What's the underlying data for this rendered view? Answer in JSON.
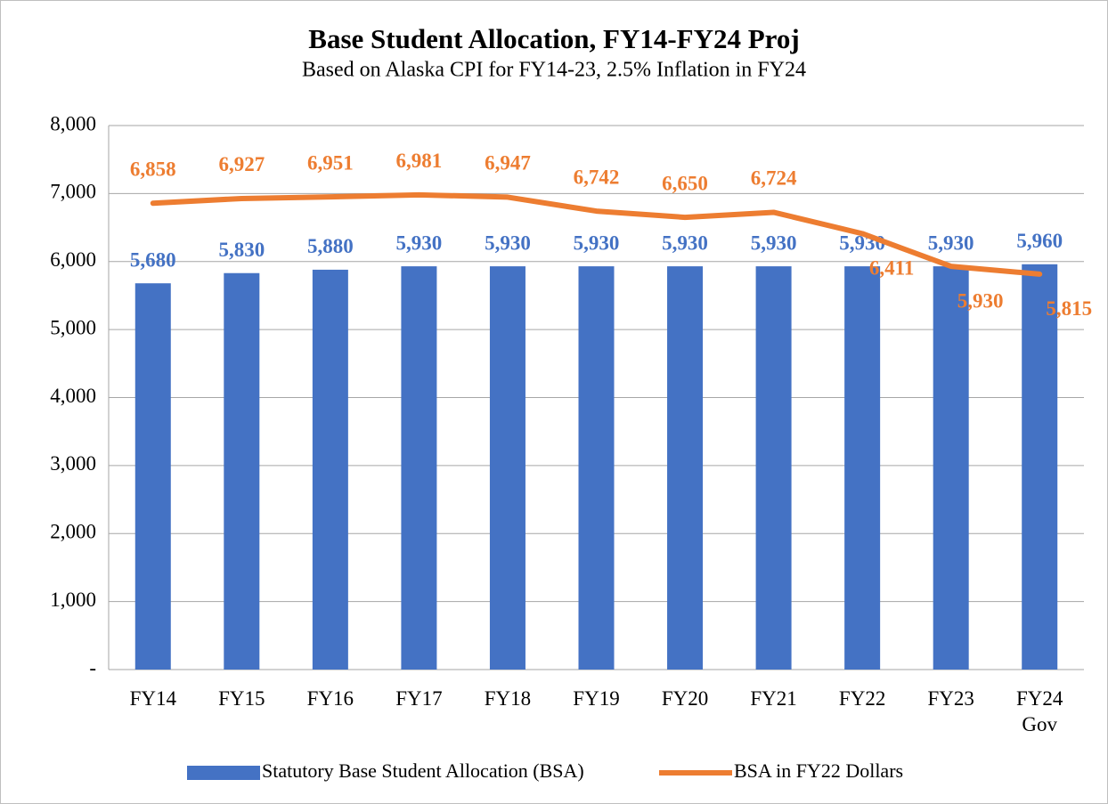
{
  "chart_data": {
    "type": "bar-line",
    "title": "Base Student Allocation, FY14-FY24 Proj",
    "subtitle": "Based on Alaska CPI for FY14-23, 2.5% Inflation in FY24",
    "categories": [
      "FY14",
      "FY15",
      "FY16",
      "FY17",
      "FY18",
      "FY19",
      "FY20",
      "FY21",
      "FY22",
      "FY23",
      "FY24\nGov"
    ],
    "series": [
      {
        "name": "Statutory Base Student Allocation (BSA)",
        "type": "bar",
        "color": "#4472c4",
        "values": [
          5680,
          5830,
          5880,
          5930,
          5930,
          5930,
          5930,
          5930,
          5930,
          5930,
          5960
        ],
        "value_labels": [
          "5,680",
          "5,830",
          "5,880",
          "5,930",
          "5,930",
          "5,930",
          "5,930",
          "5,930",
          "5,930",
          "5,930",
          "5,960"
        ]
      },
      {
        "name": "BSA in FY22 Dollars",
        "type": "line",
        "color": "#ed7d31",
        "values": [
          6858,
          6927,
          6951,
          6981,
          6947,
          6742,
          6650,
          6724,
          6411,
          5930,
          5815
        ],
        "value_labels": [
          "6,858",
          "6,927",
          "6,951",
          "6,981",
          "6,947",
          "6,742",
          "6,650",
          "6,724",
          "6,411",
          "5,930",
          "5,815"
        ]
      }
    ],
    "ylim": [
      0,
      8000
    ],
    "yticks": [
      {
        "value": 0,
        "label": "-"
      },
      {
        "value": 1000,
        "label": "1,000"
      },
      {
        "value": 2000,
        "label": "2,000"
      },
      {
        "value": 3000,
        "label": "3,000"
      },
      {
        "value": 4000,
        "label": "4,000"
      },
      {
        "value": 5000,
        "label": "5,000"
      },
      {
        "value": 6000,
        "label": "6,000"
      },
      {
        "value": 7000,
        "label": "7,000"
      },
      {
        "value": 8000,
        "label": "8,000"
      }
    ],
    "grid": true,
    "legend": "bottom"
  }
}
